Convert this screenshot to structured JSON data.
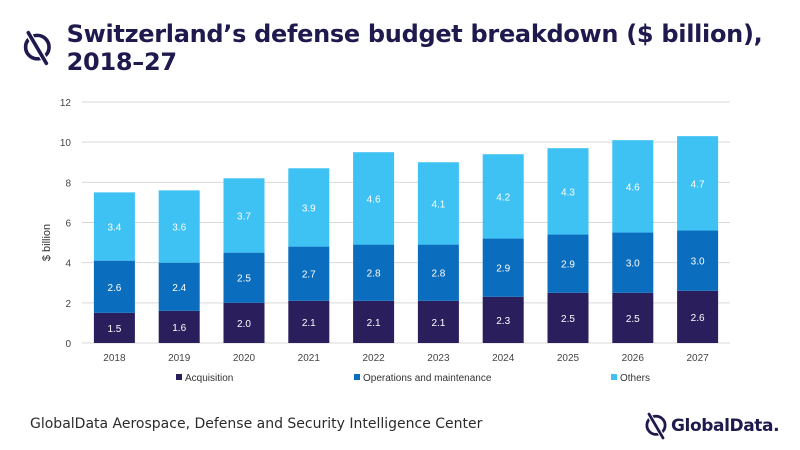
{
  "title": "Switzerland’s defense budget breakdown ($ billion), 2018–27",
  "footer": {
    "source": "GlobalData Aerospace, Defense and Security Intelligence Center",
    "brand": "GlobalData.",
    "logo_icon": "globaldata-logo-icon"
  },
  "colors": {
    "acquisition": "#2a1e5c",
    "operations": "#0a6dbe",
    "others": "#3ec1f3",
    "title": "#1f1a4d"
  },
  "chart_data": {
    "type": "bar",
    "stacked": true,
    "categories": [
      "2018",
      "2019",
      "2020",
      "2021",
      "2022",
      "2023",
      "2024",
      "2025",
      "2026",
      "2027"
    ],
    "series": [
      {
        "name": "Acquisition",
        "values": [
          1.5,
          1.6,
          2.0,
          2.1,
          2.1,
          2.1,
          2.3,
          2.5,
          2.5,
          2.6
        ],
        "labels": [
          "1.5",
          "1.6",
          "2.0",
          "2.1",
          "2.1",
          "2.1",
          "2.3",
          "2.5",
          "2.5",
          "2.6"
        ]
      },
      {
        "name": "Operations and maintenance",
        "values": [
          2.6,
          2.4,
          2.5,
          2.7,
          2.8,
          2.8,
          2.9,
          2.9,
          3.0,
          3.0
        ],
        "labels": [
          "2.6",
          "2.4",
          "2.5",
          "2.7",
          "2.8",
          "2.8",
          "2.9",
          "2.9",
          "3.0",
          "3.0"
        ]
      },
      {
        "name": "Others",
        "values": [
          3.4,
          3.6,
          3.7,
          3.9,
          4.6,
          4.1,
          4.2,
          4.3,
          4.6,
          4.7
        ],
        "labels": [
          "3.4",
          "3.6",
          "3.7",
          "3.9",
          "4.6",
          "4.1",
          "4.2",
          "4.3",
          "4.6",
          "4.7"
        ]
      }
    ],
    "ylabel": "$ billion",
    "xlabel": "",
    "ylim": [
      0,
      12
    ],
    "yticks": [
      "0",
      "2",
      "4",
      "6",
      "8",
      "10",
      "12"
    ],
    "grid": true,
    "legend": "bottom"
  }
}
